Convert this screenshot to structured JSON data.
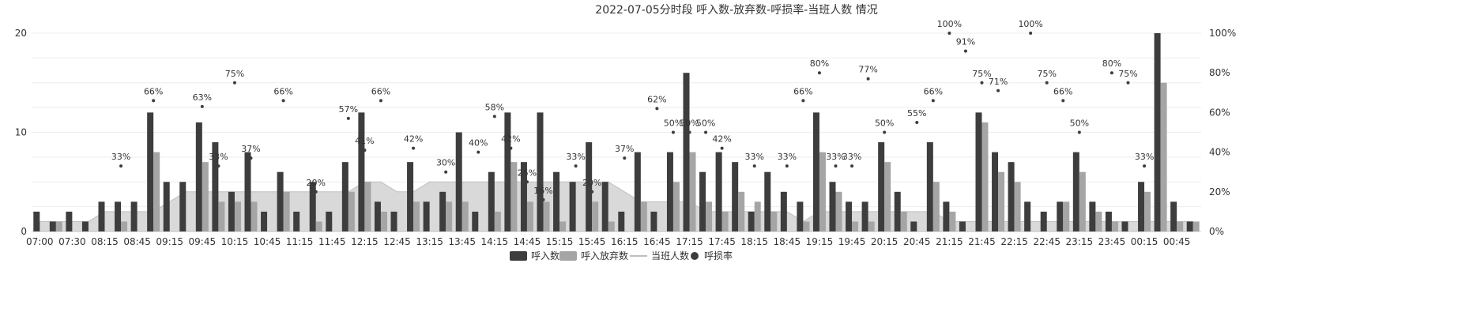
{
  "chart_data": {
    "type": "bar",
    "title": "2022-07-05分时段 呼入数-放弃数-呼损率-当班人数 情况",
    "x_tick_labels": [
      "07:00",
      "07:30",
      "08:15",
      "08:45",
      "09:15",
      "09:45",
      "10:15",
      "10:45",
      "11:15",
      "11:45",
      "12:15",
      "12:45",
      "13:15",
      "13:45",
      "14:15",
      "14:45",
      "15:15",
      "15:45",
      "16:15",
      "16:45",
      "17:15",
      "17:45",
      "18:15",
      "18:45",
      "19:15",
      "19:45",
      "20:15",
      "20:45",
      "21:15",
      "21:45",
      "22:15",
      "22:45",
      "23:15",
      "23:45",
      "00:15",
      "00:45"
    ],
    "y_left": {
      "ticks": [
        "0",
        "10",
        "20"
      ],
      "min": 0,
      "max": 20
    },
    "y_right": {
      "ticks": [
        "0%",
        "20%",
        "40%",
        "60%",
        "80%",
        "100%"
      ],
      "min": 0,
      "max": 100
    },
    "grid": true,
    "legend_position": "bottom",
    "series": [
      {
        "name": "呼入数",
        "type": "bar",
        "color": "#3d3d3d",
        "values": [
          2,
          1,
          2,
          1,
          3,
          3,
          3,
          12,
          5,
          5,
          11,
          9,
          4,
          8,
          2,
          6,
          2,
          5,
          2,
          7,
          12,
          3,
          2,
          7,
          3,
          4,
          10,
          2,
          6,
          12,
          7,
          12,
          6,
          5,
          9,
          5,
          2,
          8,
          2,
          8,
          16,
          6,
          8,
          7,
          2,
          6,
          4,
          3,
          12,
          5,
          3,
          3,
          9,
          4,
          1,
          9,
          3,
          1,
          12,
          8,
          7,
          3,
          2,
          3,
          8,
          3,
          2,
          1,
          5,
          20,
          3,
          1
        ]
      },
      {
        "name": "呼入放弃数",
        "type": "bar",
        "color": "#a5a5a5",
        "values": [
          0,
          1,
          0,
          0,
          0,
          1,
          0,
          8,
          0,
          0,
          7,
          3,
          3,
          3,
          0,
          4,
          0,
          1,
          0,
          4,
          5,
          2,
          0,
          3,
          0,
          3,
          3,
          0,
          2,
          7,
          3,
          3,
          1,
          0,
          3,
          1,
          0,
          3,
          0,
          5,
          8,
          3,
          2,
          4,
          3,
          2,
          0,
          1,
          8,
          4,
          1,
          1,
          7,
          2,
          0,
          5,
          2,
          0,
          11,
          6,
          5,
          0,
          0,
          3,
          6,
          2,
          1,
          0,
          4,
          15,
          1,
          1
        ]
      },
      {
        "name": "当班人数",
        "type": "area",
        "color": "#d9d9d9",
        "values": [
          1,
          1,
          1,
          1,
          2,
          2,
          2,
          2,
          3,
          4,
          4,
          4,
          4,
          4,
          4,
          4,
          4,
          4,
          4,
          4,
          5,
          5,
          4,
          4,
          5,
          5,
          5,
          5,
          5,
          5,
          5,
          5,
          5,
          5,
          5,
          5,
          4,
          3,
          3,
          3,
          3,
          2,
          2,
          2,
          2,
          2,
          2,
          1,
          2,
          2,
          2,
          2,
          2,
          2,
          2,
          2,
          1,
          1,
          1,
          1,
          1,
          1,
          1,
          1,
          1,
          1,
          1,
          1,
          1,
          1,
          1,
          1
        ]
      },
      {
        "name": "呼损率",
        "type": "point",
        "color": "#3d3d3d",
        "points": [
          {
            "x": 5,
            "y": 33,
            "label": "33%"
          },
          {
            "x": 7,
            "y": 66,
            "label": "66%"
          },
          {
            "x": 10,
            "y": 63,
            "label": "63%"
          },
          {
            "x": 11,
            "y": 33,
            "label": "33%"
          },
          {
            "x": 12,
            "y": 75,
            "label": "75%"
          },
          {
            "x": 13,
            "y": 37,
            "label": "37%"
          },
          {
            "x": 15,
            "y": 66,
            "label": "66%"
          },
          {
            "x": 17,
            "y": 20,
            "label": "20%"
          },
          {
            "x": 19,
            "y": 57,
            "label": "57%"
          },
          {
            "x": 20,
            "y": 41,
            "label": "41%"
          },
          {
            "x": 21,
            "y": 66,
            "label": "66%"
          },
          {
            "x": 23,
            "y": 42,
            "label": "42%"
          },
          {
            "x": 25,
            "y": 30,
            "label": "30%"
          },
          {
            "x": 27,
            "y": 40,
            "label": "40%"
          },
          {
            "x": 28,
            "y": 58,
            "label": "58%"
          },
          {
            "x": 29,
            "y": 42,
            "label": "42%"
          },
          {
            "x": 30,
            "y": 25,
            "label": "25%"
          },
          {
            "x": 31,
            "y": 16,
            "label": "16%"
          },
          {
            "x": 33,
            "y": 33,
            "label": "33%"
          },
          {
            "x": 34,
            "y": 20,
            "label": "20%"
          },
          {
            "x": 36,
            "y": 37,
            "label": "37%"
          },
          {
            "x": 38,
            "y": 62,
            "label": "62%"
          },
          {
            "x": 39,
            "y": 50,
            "label": "50%"
          },
          {
            "x": 40,
            "y": 50,
            "label": "50%"
          },
          {
            "x": 41,
            "y": 50,
            "label": "50%"
          },
          {
            "x": 42,
            "y": 42,
            "label": "42%"
          },
          {
            "x": 44,
            "y": 33,
            "label": "33%"
          },
          {
            "x": 46,
            "y": 33,
            "label": "33%"
          },
          {
            "x": 47,
            "y": 66,
            "label": "66%"
          },
          {
            "x": 48,
            "y": 80,
            "label": "80%"
          },
          {
            "x": 49,
            "y": 33,
            "label": "33%"
          },
          {
            "x": 50,
            "y": 33,
            "label": "33%"
          },
          {
            "x": 51,
            "y": 77,
            "label": "77%"
          },
          {
            "x": 52,
            "y": 50,
            "label": "50%"
          },
          {
            "x": 54,
            "y": 55,
            "label": "55%"
          },
          {
            "x": 55,
            "y": 66,
            "label": "66%"
          },
          {
            "x": 56,
            "y": 100,
            "label": "100%"
          },
          {
            "x": 57,
            "y": 91,
            "label": "91%"
          },
          {
            "x": 58,
            "y": 75,
            "label": "75%"
          },
          {
            "x": 59,
            "y": 71,
            "label": "71%"
          },
          {
            "x": 61,
            "y": 100,
            "label": "100%"
          },
          {
            "x": 62,
            "y": 75,
            "label": "75%"
          },
          {
            "x": 63,
            "y": 66,
            "label": "66%"
          },
          {
            "x": 64,
            "y": 50,
            "label": "50%"
          },
          {
            "x": 66,
            "y": 80,
            "label": "80%"
          },
          {
            "x": 67,
            "y": 75,
            "label": "75%"
          },
          {
            "x": 68,
            "y": 33,
            "label": "33%"
          }
        ]
      }
    ],
    "legend": [
      {
        "label": "呼入数",
        "swatch": "bar",
        "color": "#3d3d3d"
      },
      {
        "label": "呼入放弃数",
        "swatch": "bar",
        "color": "#a5a5a5"
      },
      {
        "label": "当班人数",
        "swatch": "line",
        "color": "#bfbfbf"
      },
      {
        "label": "呼损率",
        "swatch": "dot",
        "color": "#3d3d3d"
      }
    ]
  }
}
